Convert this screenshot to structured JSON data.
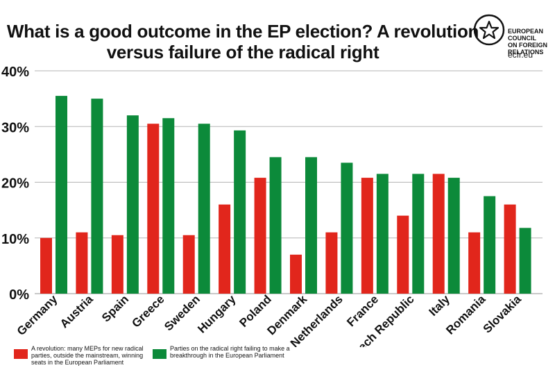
{
  "title_line1": "What is a good outcome in the EP election? A revolution",
  "title_line2": "versus failure of the radical right",
  "logo": {
    "line1": "EUROPEAN",
    "line2": "COUNCIL",
    "line3": "ON FOREIGN",
    "line4": "RELATIONS",
    "url": "ecfr.eu",
    "icon": "star-circle-icon"
  },
  "colors": {
    "red": "#e1261c",
    "green": "#0c8a3a",
    "grid": "#b5b5b5"
  },
  "chart_data": {
    "type": "bar",
    "title": "What is a good outcome in the EP election? A revolution versus failure of the radical right",
    "categories": [
      "Germany",
      "Austria",
      "Spain",
      "Greece",
      "Sweden",
      "Hungary",
      "Poland",
      "Denmark",
      "Netherlands",
      "France",
      "Czech Republic",
      "Italy",
      "Romania",
      "Slovakia"
    ],
    "series": [
      {
        "name": "A revolution: many MEPs for new radical parties, outside the mainstream, winning seats in the European Parliament",
        "color": "#e1261c",
        "values": [
          10,
          11,
          10.5,
          30.5,
          10.5,
          16,
          20.8,
          7,
          11,
          20.8,
          14,
          21.5,
          11,
          16
        ]
      },
      {
        "name": "Parties on the radical right failing to make a breakthrough in the European Parliament",
        "color": "#0c8a3a",
        "values": [
          35.5,
          35,
          32,
          31.5,
          30.5,
          29.3,
          24.5,
          24.5,
          23.5,
          21.5,
          21.5,
          20.8,
          17.5,
          11.8
        ]
      }
    ],
    "yticks": [
      "0%",
      "10%",
      "20%",
      "30%",
      "40%"
    ],
    "ylim": [
      0,
      40
    ],
    "grid": true,
    "legend_position": "bottom-left"
  }
}
